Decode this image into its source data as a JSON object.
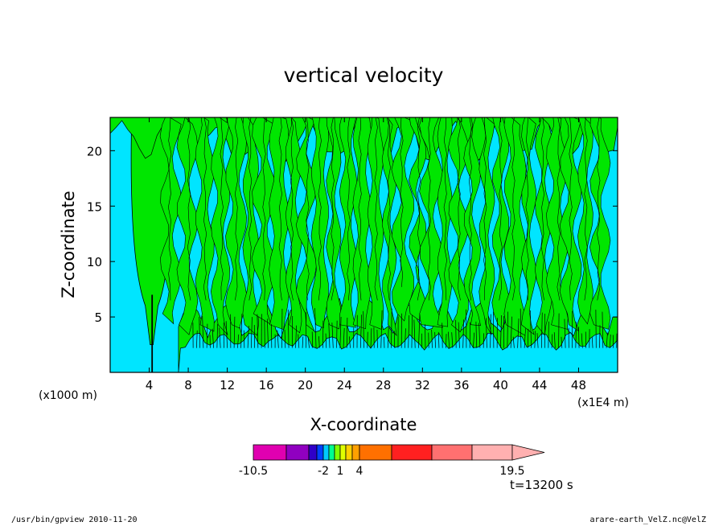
{
  "chart_data": {
    "type": "heatmap",
    "title": "vertical velocity",
    "xlabel": "X-coordinate",
    "ylabel": "Z-coordinate",
    "x_unit_left": "(x1000 m)",
    "x_unit_right": "(x1E4 m)",
    "xlim": [
      0,
      52
    ],
    "ylim": [
      0,
      23
    ],
    "xticks": [
      4,
      8,
      12,
      16,
      20,
      24,
      28,
      32,
      36,
      40,
      44,
      48
    ],
    "yticks": [
      5,
      10,
      15,
      20
    ],
    "colorbar": {
      "boundaries": [
        -10.5,
        -6.5,
        -4,
        -3,
        -2,
        -1,
        0,
        1,
        2,
        3,
        4,
        7.5,
        11.5,
        15.5,
        19.5
      ],
      "labels": [
        "-10.5",
        "-2",
        "1",
        "4",
        "19.5"
      ],
      "label_values": [
        -10.5,
        -2,
        1,
        4,
        19.5
      ],
      "colors": [
        "#e000b0",
        "#9000c0",
        "#3000c8",
        "#0040ff",
        "#00c8ff",
        "#00ff90",
        "#80ff00",
        "#e0ff00",
        "#ffd000",
        "#ffa000",
        "#ff7000",
        "#ff2020",
        "#ff7070",
        "#ffb0b0"
      ],
      "extend": "max"
    },
    "time_label": "t=13200 s",
    "field_colors": {
      "negative": "#00e5ff",
      "positive": "#00e600",
      "contour": "#000000"
    },
    "plume_centers_x": [
      4.3,
      6.2,
      7.9,
      9.7,
      11.3,
      12.9,
      14.4,
      15.8,
      17.3,
      18.8,
      20.1,
      21.5,
      22.9,
      24.4,
      25.8,
      27.2,
      28.6,
      30.0,
      31.5,
      32.9,
      34.3,
      35.7,
      37.1,
      38.6,
      40.0,
      41.5,
      42.9,
      44.4,
      45.8,
      47.2,
      48.7,
      50.2
    ]
  },
  "footer": {
    "left": "/usr/bin/gpview   2010-11-20",
    "right": "arare-earth_VelZ.nc@VelZ"
  }
}
